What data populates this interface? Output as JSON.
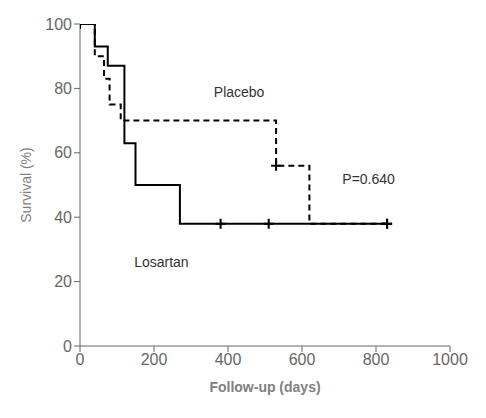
{
  "chart_data": {
    "type": "step",
    "xlabel": "Follow-up (days)",
    "ylabel": "Survival (%)",
    "xlim": [
      0,
      1000
    ],
    "ylim": [
      0,
      100
    ],
    "xticks": [
      0,
      200,
      400,
      600,
      800,
      1000
    ],
    "yticks": [
      0,
      20,
      40,
      60,
      80,
      100
    ],
    "series": [
      {
        "color": "#000000",
        "line_style": "solid",
        "marker": "plus",
        "x": [
          0,
          40,
          40,
          75,
          75,
          120,
          120,
          150,
          150,
          270,
          270,
          380,
          380,
          510,
          510,
          830
        ],
        "values": [
          100,
          100,
          93,
          93,
          87,
          87,
          63,
          63,
          50,
          50,
          38,
          38,
          38,
          38,
          38,
          38
        ],
        "censors_x": [
          380,
          510,
          830
        ],
        "censors_y": [
          38,
          38,
          38
        ]
      },
      {
        "color": "#000000",
        "line_style": "dashed",
        "marker": "plus",
        "x": [
          0,
          40,
          40,
          65,
          65,
          80,
          80,
          110,
          110,
          530,
          530,
          560,
          560,
          620,
          620,
          830
        ],
        "values": [
          100,
          100,
          90,
          90,
          83,
          83,
          75,
          75,
          70,
          70,
          56,
          56,
          56,
          56,
          38,
          38
        ],
        "censors_x": [
          530,
          830
        ],
        "censors_y": [
          56,
          38
        ]
      }
    ],
    "start_censor": {
      "x": [
        0
      ],
      "y": [
        100
      ],
      "color": "#000000",
      "marker": "plus"
    },
    "annotations": [
      {
        "text": "Losartan",
        "x": 220,
        "y": 26
      },
      {
        "text": "Placebo",
        "x": 430,
        "y": 79
      },
      {
        "text": "P=0.640",
        "x": 780,
        "y": 52
      }
    ]
  }
}
